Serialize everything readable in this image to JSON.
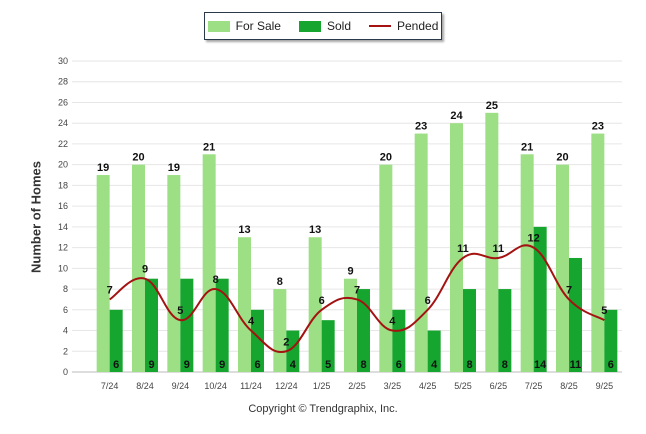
{
  "chart_data": {
    "type": "bar",
    "categories": [
      "7/24",
      "8/24",
      "9/24",
      "10/24",
      "11/24",
      "12/24",
      "1/25",
      "2/25",
      "3/25",
      "4/25",
      "5/25",
      "6/25",
      "7/25",
      "8/25",
      "9/25"
    ],
    "series": [
      {
        "name": "For Sale",
        "kind": "bar",
        "color": "#9ddf84",
        "values": [
          19,
          20,
          19,
          21,
          13,
          8,
          13,
          9,
          20,
          23,
          24,
          25,
          21,
          20,
          23
        ]
      },
      {
        "name": "Sold",
        "kind": "bar",
        "color": "#16a52e",
        "values": [
          6,
          9,
          9,
          9,
          6,
          4,
          5,
          8,
          6,
          4,
          8,
          8,
          14,
          11,
          6
        ]
      },
      {
        "name": "Pended",
        "kind": "line",
        "color": "#a41212",
        "values": [
          7,
          9,
          5,
          8,
          4,
          2,
          6,
          7,
          4,
          6,
          11,
          11,
          12,
          7,
          5
        ]
      }
    ],
    "title": "",
    "xlabel": "",
    "ylabel": "Number of Homes",
    "ylim": [
      0,
      30
    ],
    "yticks": [
      0,
      2,
      4,
      6,
      8,
      10,
      12,
      14,
      16,
      18,
      20,
      22,
      24,
      26,
      28,
      30
    ],
    "legend": "top-center"
  },
  "legend": {
    "for_sale": "For Sale",
    "sold": "Sold",
    "pended": "Pended"
  },
  "footer": {
    "copyright": "Copyright © Trendgraphix, Inc."
  }
}
